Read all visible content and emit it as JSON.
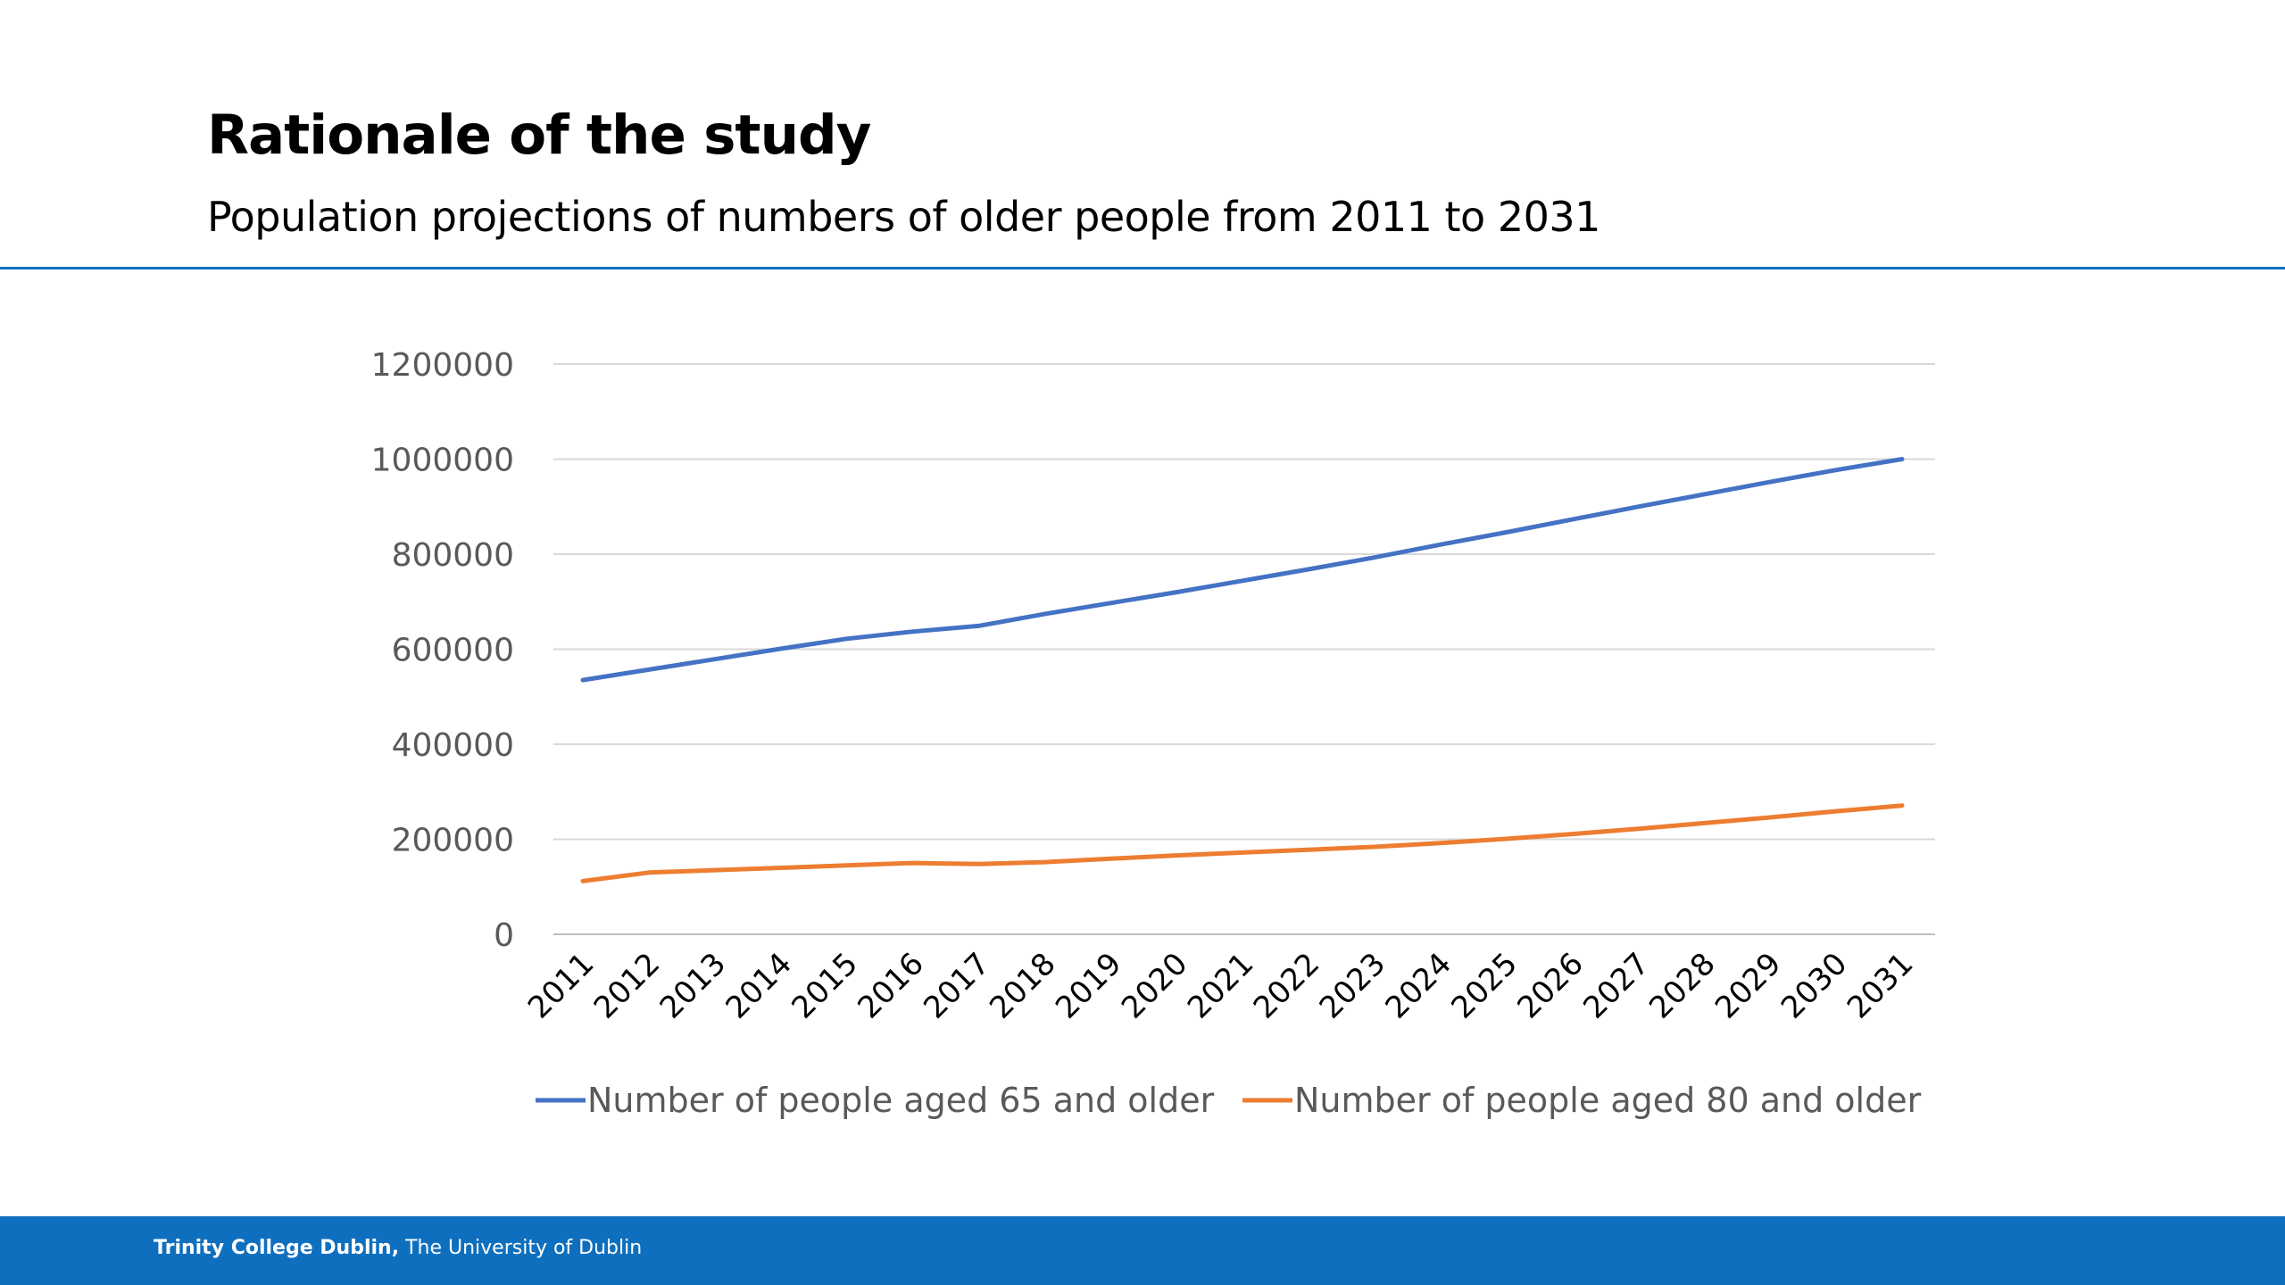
{
  "slide": {
    "title": "Rationale of the study",
    "subtitle": "Population projections of numbers of older people from 2011 to 2031"
  },
  "footer": {
    "institution": "Trinity College Dublin,",
    "tagline": "The University of Dublin"
  },
  "colors": {
    "brand_blue": "#0f6fbf",
    "series_65": "#4472c4",
    "series_80": "#ed7d31",
    "gridline": "#d9d9d9",
    "axis_text": "#595959"
  },
  "chart_data": {
    "type": "line",
    "title": "",
    "xlabel": "",
    "ylabel": "",
    "x": [
      "2011",
      "2012",
      "2013",
      "2014",
      "2015",
      "2016",
      "2017",
      "2018",
      "2019",
      "2020",
      "2021",
      "2022",
      "2023",
      "2024",
      "2025",
      "2026",
      "2027",
      "2028",
      "2029",
      "2030",
      "2031"
    ],
    "ylim": [
      0,
      1200000
    ],
    "yticks": [
      "0",
      "200000",
      "400000",
      "600000",
      "800000",
      "1000000",
      "1200000"
    ],
    "grid": true,
    "legend_position": "bottom",
    "series": [
      {
        "name": "Number of people aged 65 and older",
        "color": "#4472c4",
        "values": [
          535000,
          557000,
          579000,
          601000,
          622000,
          637000,
          649000,
          674000,
          697000,
          720000,
          744000,
          768000,
          793000,
          820000,
          846000,
          873000,
          900000,
          926000,
          952000,
          977000,
          1000000
        ]
      },
      {
        "name": "Number of people aged 80 and older",
        "color": "#ed7d31",
        "values": [
          112000,
          130000,
          135000,
          140000,
          145000,
          150000,
          148000,
          152000,
          159000,
          166000,
          172000,
          178000,
          184000,
          192000,
          201000,
          211000,
          222000,
          234000,
          246000,
          259000,
          271000
        ]
      }
    ]
  }
}
